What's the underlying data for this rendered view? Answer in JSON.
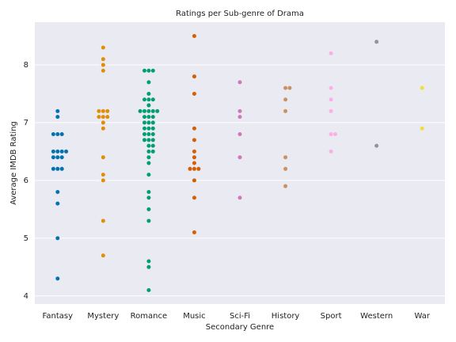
{
  "chart_data": {
    "type": "swarm",
    "title": "Ratings per Sub-genre of Drama",
    "xlabel": "Secondary Genre",
    "ylabel": "Average IMDB Rating",
    "categories": [
      "Fantasy",
      "Mystery",
      "Romance",
      "Music",
      "Sci-Fi",
      "History",
      "Sport",
      "Western",
      "War"
    ],
    "colors": [
      "#0173b2",
      "#de8f05",
      "#029e73",
      "#d55e00",
      "#cc78bc",
      "#ca9161",
      "#fbafe4",
      "#949494",
      "#ece133"
    ],
    "values": [
      [
        7.2,
        7.1,
        6.8,
        6.8,
        6.8,
        6.5,
        6.5,
        6.5,
        6.5,
        6.4,
        6.4,
        6.4,
        6.2,
        6.2,
        6.2,
        5.8,
        5.6,
        5.0,
        4.3
      ],
      [
        8.3,
        8.1,
        8.0,
        7.9,
        7.2,
        7.2,
        7.2,
        7.1,
        7.1,
        7.1,
        7.0,
        6.9,
        6.4,
        6.1,
        6.0,
        5.3,
        4.7
      ],
      [
        7.9,
        7.9,
        7.9,
        7.7,
        7.5,
        7.4,
        7.4,
        7.4,
        7.3,
        7.2,
        7.2,
        7.2,
        7.2,
        7.2,
        7.1,
        7.1,
        7.1,
        7.0,
        7.0,
        7.0,
        6.9,
        6.9,
        6.9,
        6.8,
        6.8,
        6.8,
        6.7,
        6.7,
        6.7,
        6.6,
        6.6,
        6.5,
        6.5,
        6.4,
        6.3,
        6.1,
        5.8,
        5.7,
        5.5,
        5.3,
        4.6,
        4.5,
        4.1
      ],
      [
        8.5,
        7.8,
        7.5,
        6.9,
        6.7,
        6.5,
        6.4,
        6.3,
        6.2,
        6.2,
        6.2,
        6.0,
        5.7,
        5.1
      ],
      [
        7.7,
        7.2,
        7.1,
        6.8,
        6.4,
        5.7
      ],
      [
        7.6,
        7.6,
        7.4,
        7.2,
        6.4,
        6.2,
        5.9
      ],
      [
        8.2,
        7.6,
        7.4,
        7.2,
        6.8,
        6.8,
        6.5
      ],
      [
        8.4,
        6.6
      ],
      [
        7.6,
        6.9
      ]
    ],
    "ylim": [
      3.86,
      8.74
    ],
    "yticks": [
      4,
      5,
      6,
      7,
      8
    ],
    "grid": true
  }
}
